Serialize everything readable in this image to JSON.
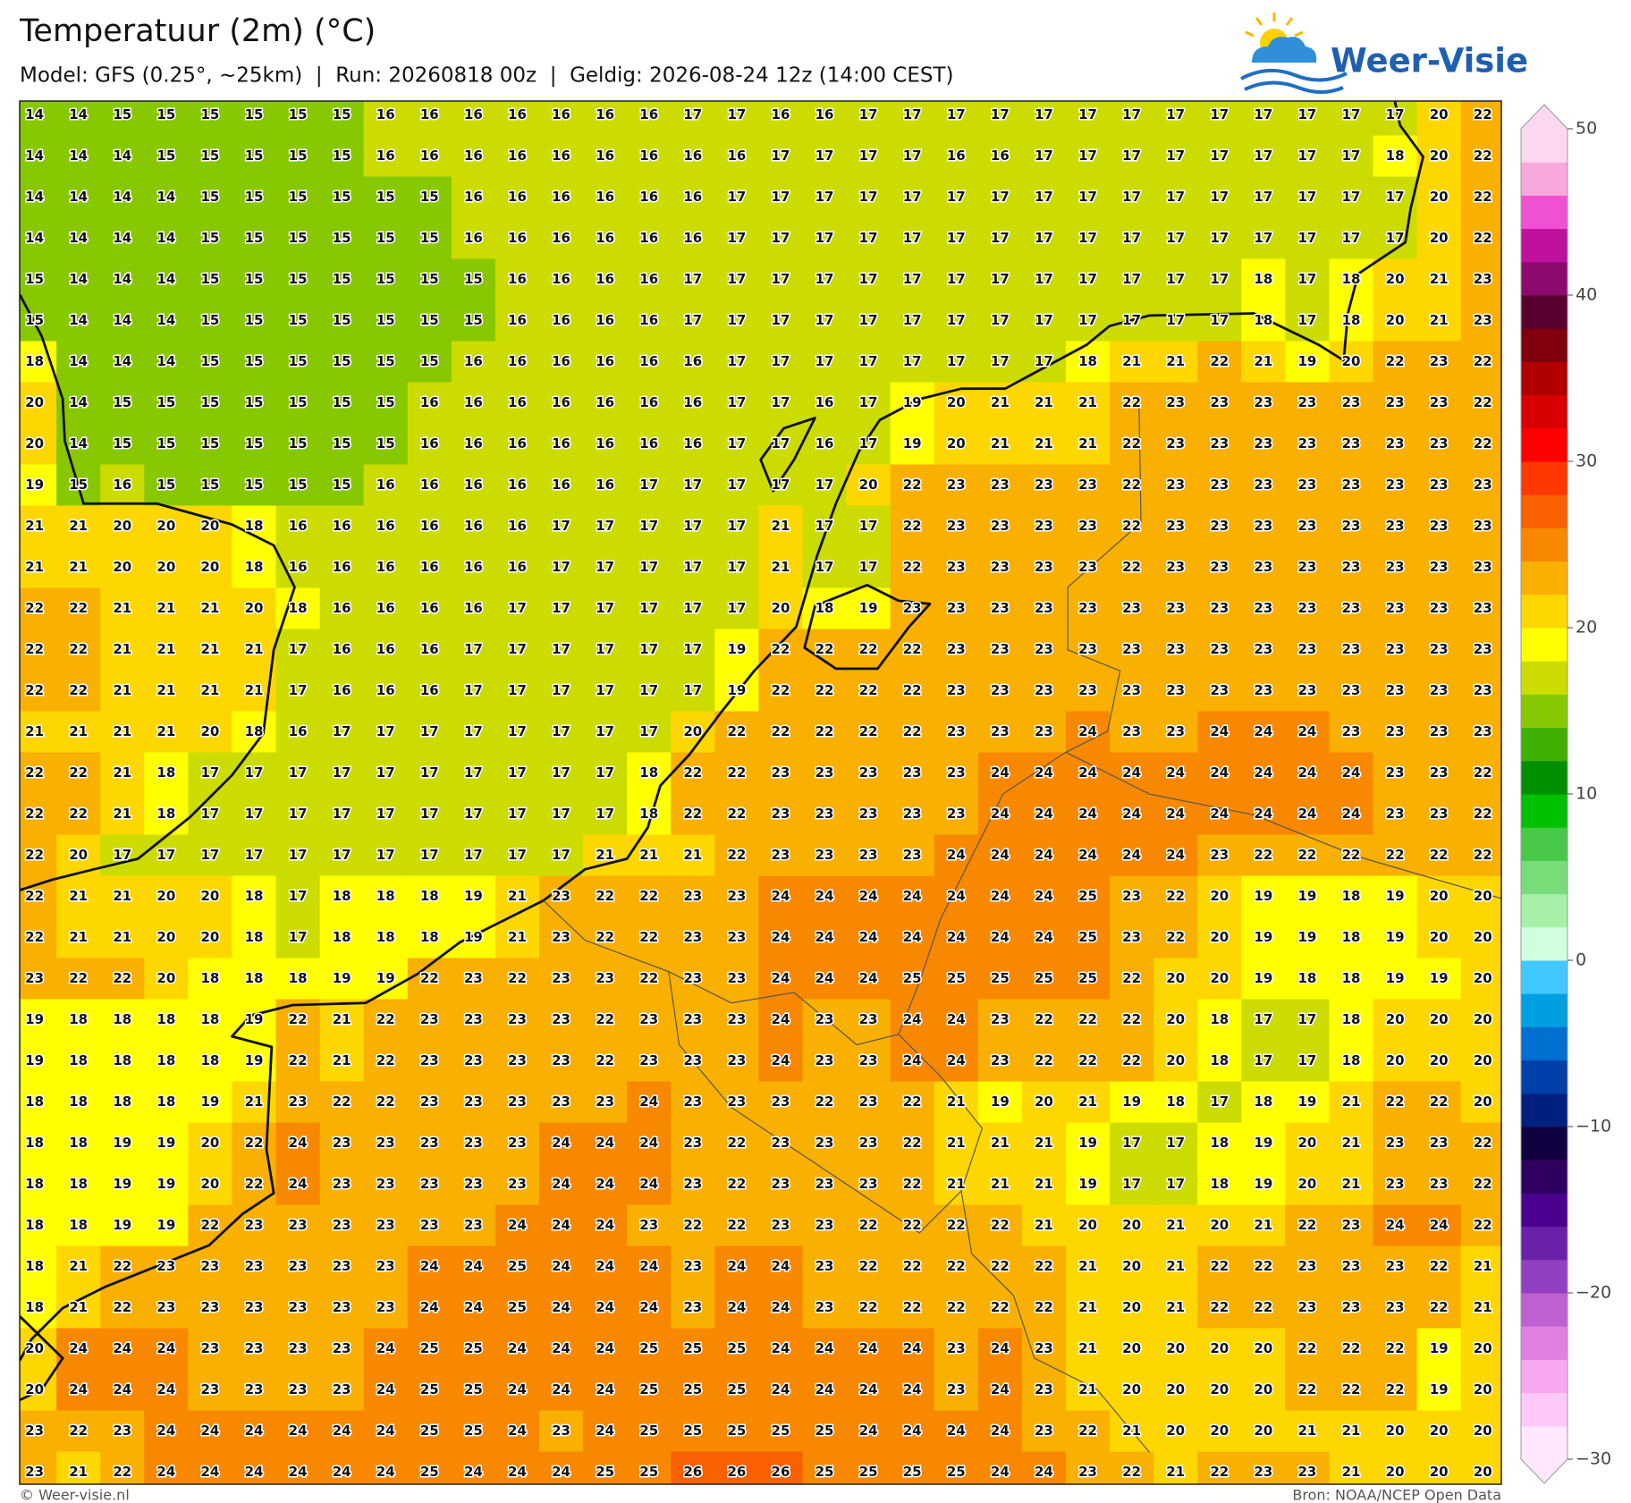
{
  "chart_data": {
    "type": "heatmap",
    "title": "Temperatuur (2m) (°C)",
    "subtitle": "Model: GFS (0.25°, ~25km)  |  Run: 20260818 00z  |  Geldig: 2026-08-24 12z (14:00 CEST)",
    "logo": "Weer-Visie",
    "credit": "© Weer-visie.nl",
    "source": "Bron: NOAA/NCEP Open Data",
    "values": [
      [
        14,
        14,
        15,
        15,
        15,
        15,
        15,
        15,
        16,
        16,
        16,
        16,
        16,
        16,
        16,
        17,
        17,
        16,
        16,
        17,
        17,
        17,
        17,
        17,
        17,
        17,
        17,
        17,
        17,
        17,
        17,
        17,
        20,
        22
      ],
      [
        14,
        14,
        14,
        15,
        15,
        15,
        15,
        15,
        16,
        16,
        16,
        16,
        16,
        16,
        16,
        16,
        16,
        17,
        17,
        17,
        17,
        16,
        16,
        17,
        17,
        17,
        17,
        17,
        17,
        17,
        17,
        18,
        20,
        22
      ],
      [
        14,
        14,
        14,
        14,
        15,
        15,
        15,
        15,
        15,
        15,
        16,
        16,
        16,
        16,
        16,
        16,
        17,
        17,
        17,
        17,
        17,
        17,
        17,
        17,
        17,
        17,
        17,
        17,
        17,
        17,
        17,
        17,
        20,
        22
      ],
      [
        14,
        14,
        14,
        14,
        15,
        15,
        15,
        15,
        15,
        15,
        16,
        16,
        16,
        16,
        16,
        16,
        17,
        17,
        17,
        17,
        17,
        17,
        17,
        17,
        17,
        17,
        17,
        17,
        17,
        17,
        17,
        17,
        20,
        22
      ],
      [
        15,
        14,
        14,
        14,
        15,
        15,
        15,
        15,
        15,
        15,
        15,
        16,
        16,
        16,
        16,
        17,
        17,
        17,
        17,
        17,
        17,
        17,
        17,
        17,
        17,
        17,
        17,
        17,
        18,
        17,
        18,
        20,
        21,
        23
      ],
      [
        15,
        14,
        14,
        14,
        15,
        15,
        15,
        15,
        15,
        15,
        15,
        16,
        16,
        16,
        16,
        17,
        17,
        17,
        17,
        17,
        17,
        17,
        17,
        17,
        17,
        17,
        17,
        17,
        18,
        17,
        18,
        20,
        21,
        23
      ],
      [
        18,
        14,
        14,
        14,
        15,
        15,
        15,
        15,
        15,
        15,
        16,
        16,
        16,
        16,
        16,
        16,
        17,
        17,
        17,
        17,
        17,
        17,
        17,
        17,
        18,
        21,
        21,
        22,
        21,
        19,
        20,
        22,
        23,
        22
      ],
      [
        20,
        14,
        15,
        15,
        15,
        15,
        15,
        15,
        15,
        16,
        16,
        16,
        16,
        16,
        16,
        16,
        17,
        17,
        16,
        17,
        19,
        20,
        21,
        21,
        21,
        22,
        23,
        23,
        23,
        23,
        23,
        23,
        23,
        22
      ],
      [
        20,
        14,
        15,
        15,
        15,
        15,
        15,
        15,
        15,
        16,
        16,
        16,
        16,
        16,
        16,
        16,
        17,
        17,
        16,
        17,
        19,
        20,
        21,
        21,
        21,
        22,
        23,
        23,
        23,
        23,
        23,
        23,
        23,
        22
      ],
      [
        19,
        15,
        16,
        15,
        15,
        15,
        15,
        15,
        16,
        16,
        16,
        16,
        16,
        16,
        17,
        17,
        17,
        17,
        17,
        20,
        22,
        23,
        23,
        23,
        23,
        22,
        23,
        23,
        23,
        23,
        23,
        23,
        23,
        23
      ],
      [
        21,
        21,
        20,
        20,
        20,
        18,
        16,
        16,
        16,
        16,
        16,
        16,
        17,
        17,
        17,
        17,
        17,
        21,
        17,
        17,
        22,
        23,
        23,
        23,
        23,
        22,
        23,
        23,
        23,
        23,
        23,
        23,
        23,
        23
      ],
      [
        21,
        21,
        20,
        20,
        20,
        18,
        16,
        16,
        16,
        16,
        16,
        16,
        17,
        17,
        17,
        17,
        17,
        21,
        17,
        17,
        22,
        23,
        23,
        23,
        23,
        22,
        23,
        23,
        23,
        23,
        23,
        23,
        23,
        23
      ],
      [
        22,
        22,
        21,
        21,
        21,
        20,
        18,
        16,
        16,
        16,
        16,
        17,
        17,
        17,
        17,
        17,
        17,
        20,
        18,
        19,
        23,
        23,
        23,
        23,
        23,
        23,
        23,
        23,
        23,
        23,
        23,
        23,
        23,
        23
      ],
      [
        22,
        22,
        21,
        21,
        21,
        21,
        17,
        16,
        16,
        16,
        17,
        17,
        17,
        17,
        17,
        17,
        19,
        22,
        22,
        22,
        22,
        23,
        23,
        23,
        23,
        23,
        23,
        23,
        23,
        23,
        23,
        23,
        23,
        23
      ],
      [
        22,
        22,
        21,
        21,
        21,
        21,
        17,
        16,
        16,
        16,
        17,
        17,
        17,
        17,
        17,
        17,
        19,
        22,
        22,
        22,
        22,
        23,
        23,
        23,
        23,
        23,
        23,
        23,
        23,
        23,
        23,
        23,
        23,
        23
      ],
      [
        21,
        21,
        21,
        21,
        20,
        18,
        16,
        17,
        17,
        17,
        17,
        17,
        17,
        17,
        17,
        20,
        22,
        22,
        22,
        22,
        22,
        23,
        23,
        23,
        24,
        23,
        23,
        24,
        24,
        24,
        23,
        23,
        23,
        23
      ],
      [
        22,
        22,
        21,
        18,
        17,
        17,
        17,
        17,
        17,
        17,
        17,
        17,
        17,
        17,
        18,
        22,
        22,
        23,
        23,
        23,
        23,
        23,
        24,
        24,
        24,
        24,
        24,
        24,
        24,
        24,
        24,
        23,
        23,
        22
      ],
      [
        22,
        22,
        21,
        18,
        17,
        17,
        17,
        17,
        17,
        17,
        17,
        17,
        17,
        17,
        18,
        22,
        22,
        23,
        23,
        23,
        23,
        23,
        24,
        24,
        24,
        24,
        24,
        24,
        24,
        24,
        24,
        23,
        23,
        22
      ],
      [
        22,
        20,
        17,
        17,
        17,
        17,
        17,
        17,
        17,
        17,
        17,
        17,
        17,
        21,
        21,
        21,
        22,
        23,
        23,
        23,
        23,
        24,
        24,
        24,
        24,
        24,
        24,
        23,
        22,
        22,
        22,
        22,
        22,
        22
      ],
      [
        22,
        21,
        21,
        20,
        20,
        18,
        17,
        18,
        18,
        18,
        19,
        21,
        23,
        22,
        22,
        23,
        23,
        24,
        24,
        24,
        24,
        24,
        24,
        24,
        25,
        23,
        22,
        20,
        19,
        19,
        18,
        19,
        20,
        20
      ],
      [
        22,
        21,
        21,
        20,
        20,
        18,
        17,
        18,
        18,
        18,
        19,
        21,
        23,
        22,
        22,
        23,
        23,
        24,
        24,
        24,
        24,
        24,
        24,
        24,
        25,
        23,
        22,
        20,
        19,
        19,
        18,
        19,
        20,
        20
      ],
      [
        23,
        22,
        22,
        20,
        18,
        18,
        18,
        19,
        19,
        22,
        23,
        22,
        23,
        23,
        22,
        23,
        23,
        24,
        24,
        24,
        25,
        25,
        25,
        25,
        25,
        22,
        20,
        20,
        19,
        18,
        18,
        19,
        19,
        20
      ],
      [
        19,
        18,
        18,
        18,
        18,
        19,
        22,
        21,
        22,
        23,
        23,
        23,
        23,
        22,
        23,
        23,
        23,
        24,
        23,
        23,
        24,
        24,
        23,
        22,
        22,
        22,
        20,
        18,
        17,
        17,
        18,
        20,
        20,
        20
      ],
      [
        19,
        18,
        18,
        18,
        18,
        19,
        22,
        21,
        22,
        23,
        23,
        23,
        23,
        22,
        23,
        23,
        23,
        24,
        23,
        23,
        24,
        24,
        23,
        22,
        22,
        22,
        20,
        18,
        17,
        17,
        18,
        20,
        20,
        20
      ],
      [
        18,
        18,
        18,
        18,
        19,
        21,
        23,
        22,
        22,
        23,
        23,
        23,
        23,
        23,
        24,
        23,
        23,
        23,
        22,
        23,
        22,
        21,
        19,
        20,
        21,
        19,
        18,
        17,
        18,
        19,
        21,
        22,
        22,
        20
      ],
      [
        18,
        18,
        19,
        19,
        20,
        22,
        24,
        23,
        23,
        23,
        23,
        23,
        24,
        24,
        24,
        23,
        22,
        23,
        23,
        23,
        22,
        21,
        21,
        21,
        19,
        17,
        17,
        18,
        19,
        20,
        21,
        23,
        23,
        22
      ],
      [
        18,
        18,
        19,
        19,
        20,
        22,
        24,
        23,
        23,
        23,
        23,
        23,
        24,
        24,
        24,
        23,
        22,
        23,
        23,
        23,
        22,
        21,
        21,
        21,
        19,
        17,
        17,
        18,
        19,
        20,
        21,
        23,
        23,
        22
      ],
      [
        18,
        18,
        19,
        19,
        22,
        23,
        23,
        23,
        23,
        23,
        23,
        24,
        24,
        24,
        23,
        22,
        22,
        23,
        23,
        22,
        22,
        22,
        22,
        21,
        20,
        20,
        21,
        20,
        21,
        22,
        23,
        24,
        24,
        22
      ],
      [
        18,
        21,
        22,
        23,
        23,
        23,
        23,
        23,
        23,
        24,
        24,
        25,
        24,
        24,
        24,
        23,
        24,
        24,
        23,
        22,
        22,
        22,
        22,
        22,
        21,
        20,
        21,
        22,
        22,
        23,
        23,
        23,
        22,
        21
      ],
      [
        18,
        21,
        22,
        23,
        23,
        23,
        23,
        23,
        23,
        24,
        24,
        25,
        24,
        24,
        24,
        23,
        24,
        24,
        23,
        22,
        22,
        22,
        22,
        22,
        21,
        20,
        21,
        22,
        22,
        23,
        23,
        23,
        22,
        21
      ],
      [
        20,
        24,
        24,
        24,
        23,
        23,
        23,
        23,
        24,
        25,
        25,
        24,
        24,
        24,
        25,
        25,
        25,
        24,
        24,
        24,
        24,
        23,
        24,
        23,
        21,
        20,
        20,
        20,
        20,
        22,
        22,
        22,
        19,
        20
      ],
      [
        20,
        24,
        24,
        24,
        23,
        23,
        23,
        23,
        24,
        25,
        25,
        24,
        24,
        24,
        25,
        25,
        25,
        24,
        24,
        24,
        24,
        23,
        24,
        23,
        21,
        20,
        20,
        20,
        20,
        22,
        22,
        22,
        19,
        20
      ],
      [
        23,
        22,
        23,
        24,
        24,
        24,
        24,
        24,
        24,
        25,
        25,
        24,
        23,
        24,
        25,
        25,
        25,
        25,
        25,
        24,
        24,
        24,
        24,
        23,
        22,
        21,
        20,
        20,
        20,
        21,
        21,
        20,
        20,
        20
      ],
      [
        23,
        21,
        22,
        24,
        24,
        24,
        24,
        24,
        24,
        25,
        24,
        24,
        24,
        25,
        25,
        26,
        26,
        26,
        25,
        25,
        25,
        25,
        24,
        24,
        23,
        22,
        21,
        22,
        23,
        23,
        21,
        20,
        20,
        20
      ]
    ],
    "colorbar": {
      "lim": [
        -30,
        50
      ],
      "ticks": [
        50,
        40,
        30,
        20,
        10,
        0,
        {
          "value": -10,
          "label": "−10"
        },
        {
          "value": -20,
          "label": "−20"
        },
        {
          "value": -30,
          "label": "−30"
        }
      ],
      "colors": [
        "#ffe8fd",
        "#ffc8f8",
        "#f8a8f0",
        "#e080e0",
        "#c060d0",
        "#9040c0",
        "#6a20a8",
        "#4c0090",
        "#300060",
        "#100040",
        "#002080",
        "#0040a8",
        "#0070d0",
        "#00a0e0",
        "#40c8ff",
        "#d0ffe0",
        "#a8f0a8",
        "#78dc78",
        "#48c848",
        "#00c000",
        "#009000",
        "#40b000",
        "#88c800",
        "#ccdc00",
        "#ffff00",
        "#ffd700",
        "#f9b000",
        "#f88800",
        "#f86000",
        "#ff3800",
        "#ff0000",
        "#d80000",
        "#b00000",
        "#800010",
        "#580030",
        "#8c0a6e",
        "#c0109e",
        "#f050d2",
        "#f8a8dc",
        "#fcd8f0"
      ]
    }
  }
}
